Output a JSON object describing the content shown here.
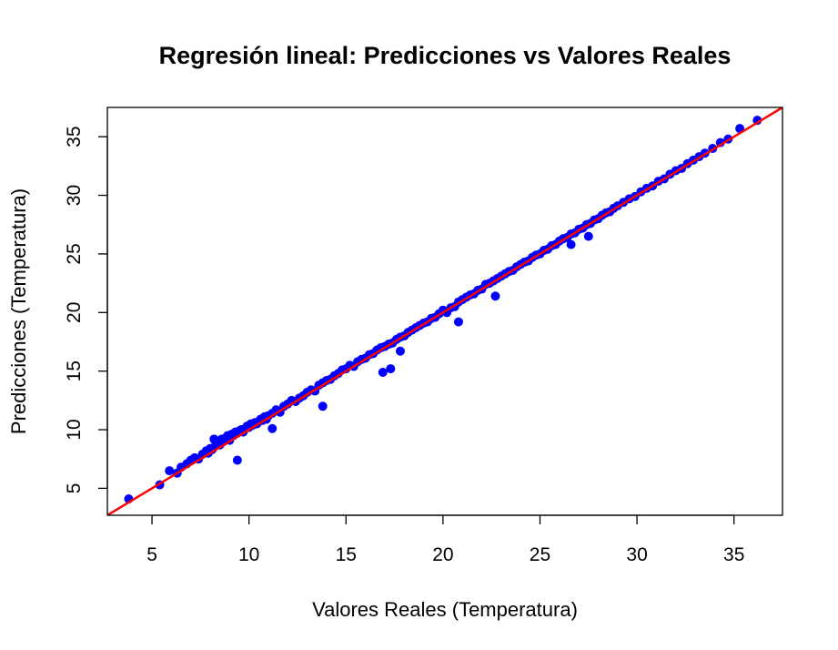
{
  "chart_data": {
    "type": "scatter",
    "title": "Regresión lineal: Predicciones vs Valores Reales",
    "xlabel": "Valores Reales (Temperatura)",
    "ylabel": "Predicciones (Temperatura)",
    "xlim": [
      2.7,
      37.5
    ],
    "ylim": [
      2.7,
      37.5
    ],
    "x_ticks": [
      5,
      10,
      15,
      20,
      25,
      30,
      35
    ],
    "y_ticks": [
      5,
      10,
      15,
      20,
      25,
      30,
      35
    ],
    "grid": false,
    "legend": "none",
    "point_color": "#0000ff",
    "line_color": "#ff0000",
    "fit_line": {
      "intercept": 0,
      "slope": 1
    },
    "series": [
      {
        "x": [
          3.8,
          5.4,
          5.9,
          6.3,
          6.5,
          6.8,
          7.0,
          7.2,
          7.4,
          7.6,
          7.8,
          7.9,
          8.0,
          8.1,
          8.2,
          8.3,
          8.4,
          8.5,
          8.6,
          8.7,
          8.8,
          8.9,
          9.0,
          9.1,
          9.2,
          9.3,
          9.4,
          9.5,
          9.6,
          9.7,
          9.8,
          9.9,
          10.0,
          10.1,
          10.2,
          10.3,
          10.4,
          10.5,
          10.6,
          10.7,
          10.8,
          10.9,
          11.0,
          11.2,
          11.4,
          11.6,
          11.8,
          12.0,
          12.2,
          12.4,
          12.6,
          12.8,
          13.0,
          13.2,
          13.4,
          13.6,
          13.8,
          14.0,
          14.2,
          14.4,
          14.6,
          14.8,
          15.0,
          15.2,
          15.4,
          15.6,
          15.8,
          16.0,
          16.2,
          16.4,
          16.6,
          16.8,
          17.0,
          17.2,
          17.4,
          17.6,
          17.8,
          18.0,
          18.2,
          18.4,
          18.6,
          18.8,
          19.0,
          19.2,
          19.4,
          19.6,
          19.8,
          20.0,
          20.2,
          20.4,
          20.6,
          20.8,
          21.0,
          21.2,
          21.4,
          21.6,
          21.8,
          22.0,
          22.2,
          22.4,
          22.6,
          22.8,
          23.0,
          23.2,
          23.4,
          23.6,
          23.8,
          24.0,
          24.2,
          24.4,
          24.6,
          24.8,
          25.0,
          25.2,
          25.4,
          25.6,
          25.8,
          26.0,
          26.2,
          26.4,
          26.6,
          26.8,
          27.0,
          27.2,
          27.4,
          27.6,
          27.8,
          28.0,
          28.2,
          28.4,
          28.6,
          28.8,
          29.0,
          29.3,
          29.6,
          29.9,
          30.2,
          30.5,
          30.8,
          31.1,
          31.4,
          31.7,
          32.0,
          32.3,
          32.6,
          32.9,
          33.2,
          33.5,
          33.9,
          34.3,
          34.7,
          35.3,
          36.2,
          9.4,
          11.2,
          13.8,
          16.9,
          17.3,
          17.8,
          20.8,
          22.7,
          26.6,
          27.5
        ],
        "y": [
          4.1,
          5.3,
          6.5,
          6.3,
          6.8,
          7.1,
          7.4,
          7.6,
          7.5,
          7.9,
          8.2,
          8.0,
          8.4,
          8.3,
          9.2,
          8.8,
          9.0,
          8.7,
          9.2,
          9.0,
          9.3,
          9.5,
          9.1,
          9.6,
          9.5,
          9.8,
          9.7,
          9.9,
          10.0,
          9.8,
          10.1,
          10.3,
          10.2,
          10.5,
          10.4,
          10.6,
          10.5,
          10.7,
          10.9,
          10.8,
          11.1,
          10.9,
          11.2,
          11.4,
          11.7,
          11.5,
          12.0,
          12.2,
          12.5,
          12.4,
          12.7,
          12.9,
          13.2,
          13.4,
          13.3,
          13.8,
          14.0,
          14.2,
          14.3,
          14.6,
          14.8,
          15.1,
          15.2,
          15.5,
          15.4,
          15.8,
          16.0,
          16.1,
          16.4,
          16.5,
          16.8,
          17.0,
          17.1,
          17.3,
          17.4,
          17.7,
          17.9,
          18.0,
          18.3,
          18.5,
          18.7,
          18.9,
          19.1,
          19.2,
          19.5,
          19.6,
          19.9,
          20.2,
          20.0,
          20.4,
          20.5,
          20.9,
          21.1,
          21.3,
          21.5,
          21.6,
          21.9,
          22.0,
          22.4,
          22.5,
          22.7,
          22.9,
          23.1,
          23.3,
          23.5,
          23.6,
          23.9,
          24.1,
          24.3,
          24.4,
          24.7,
          24.9,
          25.0,
          25.3,
          25.4,
          25.7,
          25.8,
          26.1,
          26.3,
          26.4,
          26.7,
          26.8,
          27.1,
          27.2,
          27.5,
          27.6,
          27.9,
          28.0,
          28.3,
          28.5,
          28.6,
          28.9,
          29.1,
          29.4,
          29.7,
          29.9,
          30.3,
          30.6,
          30.8,
          31.2,
          31.4,
          31.8,
          32.1,
          32.3,
          32.7,
          33.0,
          33.3,
          33.6,
          34.0,
          34.5,
          34.8,
          35.7,
          36.4,
          7.4,
          10.1,
          12.0,
          14.9,
          15.2,
          16.7,
          19.2,
          21.4,
          25.8,
          26.5
        ]
      }
    ]
  }
}
